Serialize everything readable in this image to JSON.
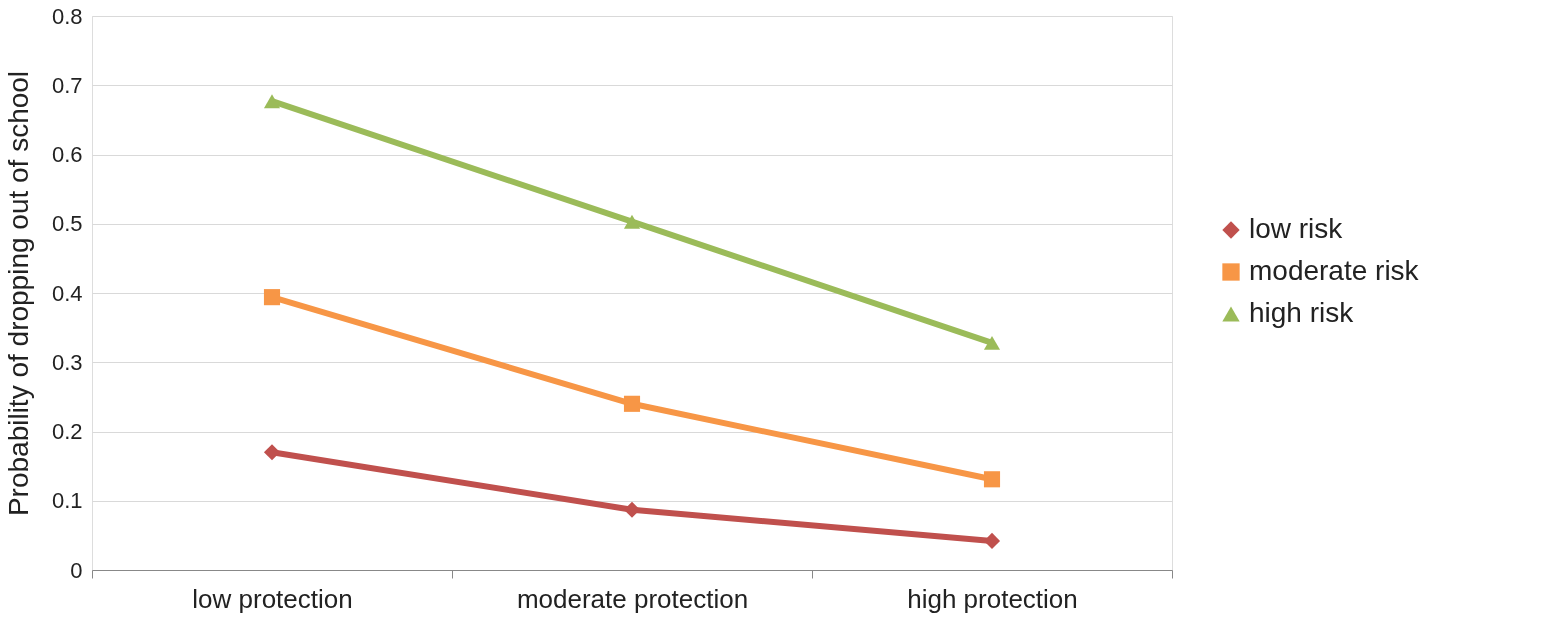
{
  "chart_data": {
    "type": "line",
    "ylabel": "Probability of dropping out of school",
    "categories": [
      "low protection",
      "moderate protection",
      "high protection"
    ],
    "series": [
      {
        "name": "low risk",
        "color": "#c0504d",
        "values": [
          0.17,
          0.087,
          0.042
        ],
        "marker": "diamond"
      },
      {
        "name": "moderate risk",
        "color": "#f79646",
        "values": [
          0.394,
          0.24,
          0.131
        ],
        "marker": "square"
      },
      {
        "name": "high risk",
        "color": "#9bbb59",
        "values": [
          0.677,
          0.503,
          0.328
        ],
        "marker": "triangle"
      }
    ],
    "ylim": [
      0,
      0.8
    ],
    "yticks": [
      0,
      0.1,
      0.2,
      0.3,
      0.4,
      0.5,
      0.6,
      0.7,
      0.8
    ],
    "grid": "y",
    "legend": "right",
    "line_style": "solid"
  }
}
